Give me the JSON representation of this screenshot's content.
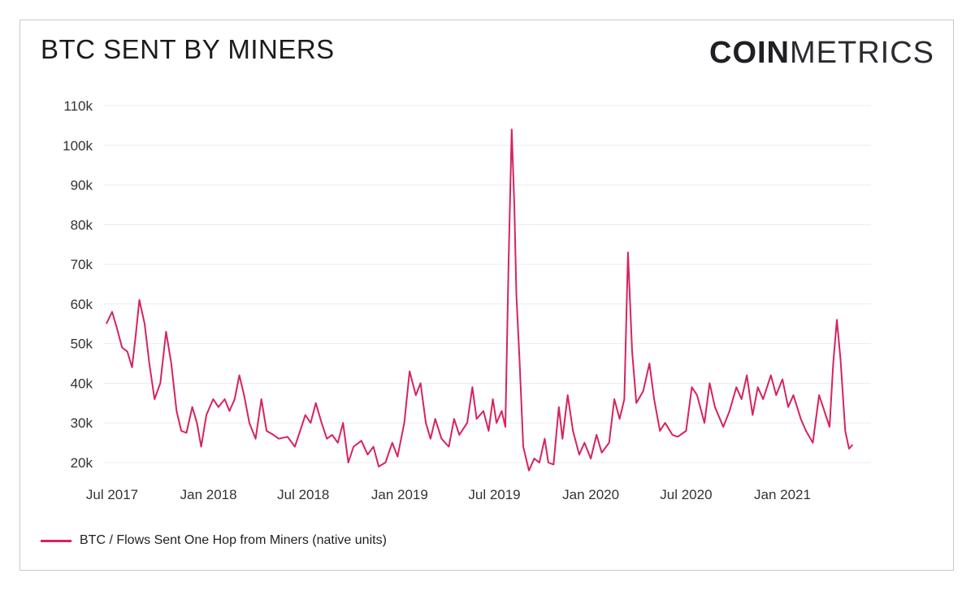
{
  "header": {
    "title": "BTC SENT BY MINERS",
    "logo_bold": "COIN",
    "logo_light": "METRICS"
  },
  "chart_data": {
    "type": "line",
    "title": "BTC SENT BY MINERS",
    "xlabel": "",
    "ylabel": "",
    "ylim": [
      20000,
      110000
    ],
    "y_ticks": [
      "110k",
      "100k",
      "90k",
      "80k",
      "70k",
      "60k",
      "50k",
      "40k",
      "30k",
      "20k"
    ],
    "x_ticks": [
      "Jul 2017",
      "Jan 2018",
      "Jul 2018",
      "Jan 2019",
      "Jul 2019",
      "Jan 2020",
      "Jul 2020",
      "Jan 2021"
    ],
    "grid": true,
    "legend_position": "bottom-left",
    "series": [
      {
        "name": "BTC / Flows Sent One Hop from Miners (native units)",
        "color": "#d6245b",
        "points": [
          [
            "2017-06-20",
            55000
          ],
          [
            "2017-07-01",
            58000
          ],
          [
            "2017-07-10",
            54000
          ],
          [
            "2017-07-20",
            49000
          ],
          [
            "2017-07-30",
            48000
          ],
          [
            "2017-08-08",
            44000
          ],
          [
            "2017-08-15",
            52000
          ],
          [
            "2017-08-22",
            61000
          ],
          [
            "2017-09-01",
            55000
          ],
          [
            "2017-09-10",
            45000
          ],
          [
            "2017-09-20",
            36000
          ],
          [
            "2017-10-01",
            40000
          ],
          [
            "2017-10-12",
            53000
          ],
          [
            "2017-10-22",
            45000
          ],
          [
            "2017-11-01",
            33000
          ],
          [
            "2017-11-10",
            28000
          ],
          [
            "2017-11-20",
            27500
          ],
          [
            "2017-12-01",
            34000
          ],
          [
            "2017-12-10",
            30000
          ],
          [
            "2017-12-18",
            24000
          ],
          [
            "2017-12-28",
            32000
          ],
          [
            "2018-01-10",
            36000
          ],
          [
            "2018-01-20",
            34000
          ],
          [
            "2018-02-01",
            36000
          ],
          [
            "2018-02-10",
            33000
          ],
          [
            "2018-02-20",
            36000
          ],
          [
            "2018-03-01",
            42000
          ],
          [
            "2018-03-10",
            37000
          ],
          [
            "2018-03-20",
            30000
          ],
          [
            "2018-04-01",
            26000
          ],
          [
            "2018-04-12",
            36000
          ],
          [
            "2018-04-22",
            28000
          ],
          [
            "2018-05-05",
            27000
          ],
          [
            "2018-05-15",
            26000
          ],
          [
            "2018-06-01",
            26500
          ],
          [
            "2018-06-15",
            24000
          ],
          [
            "2018-06-25",
            28000
          ],
          [
            "2018-07-05",
            32000
          ],
          [
            "2018-07-15",
            30000
          ],
          [
            "2018-07-25",
            35000
          ],
          [
            "2018-08-05",
            30000
          ],
          [
            "2018-08-15",
            26000
          ],
          [
            "2018-08-25",
            27000
          ],
          [
            "2018-09-05",
            25000
          ],
          [
            "2018-09-15",
            30000
          ],
          [
            "2018-09-25",
            20000
          ],
          [
            "2018-10-05",
            24000
          ],
          [
            "2018-10-20",
            25500
          ],
          [
            "2018-11-01",
            22000
          ],
          [
            "2018-11-12",
            24000
          ],
          [
            "2018-11-22",
            19000
          ],
          [
            "2018-12-05",
            20000
          ],
          [
            "2018-12-18",
            25000
          ],
          [
            "2018-12-28",
            21500
          ],
          [
            "2019-01-10",
            30000
          ],
          [
            "2019-01-20",
            43000
          ],
          [
            "2019-02-01",
            37000
          ],
          [
            "2019-02-10",
            40000
          ],
          [
            "2019-02-20",
            30000
          ],
          [
            "2019-03-01",
            26000
          ],
          [
            "2019-03-10",
            31000
          ],
          [
            "2019-03-22",
            26000
          ],
          [
            "2019-04-05",
            24000
          ],
          [
            "2019-04-15",
            31000
          ],
          [
            "2019-04-25",
            27000
          ],
          [
            "2019-05-10",
            30000
          ],
          [
            "2019-05-20",
            39000
          ],
          [
            "2019-05-28",
            31000
          ],
          [
            "2019-06-10",
            33000
          ],
          [
            "2019-06-20",
            28000
          ],
          [
            "2019-06-28",
            36000
          ],
          [
            "2019-07-05",
            30000
          ],
          [
            "2019-07-15",
            33000
          ],
          [
            "2019-07-22",
            29000
          ],
          [
            "2019-07-28",
            70000
          ],
          [
            "2019-08-03",
            104000
          ],
          [
            "2019-08-08",
            85000
          ],
          [
            "2019-08-12",
            62000
          ],
          [
            "2019-08-18",
            46000
          ],
          [
            "2019-08-25",
            24000
          ],
          [
            "2019-09-05",
            18000
          ],
          [
            "2019-09-15",
            21000
          ],
          [
            "2019-09-25",
            20000
          ],
          [
            "2019-10-05",
            26000
          ],
          [
            "2019-10-12",
            20000
          ],
          [
            "2019-10-22",
            19500
          ],
          [
            "2019-11-01",
            34000
          ],
          [
            "2019-11-08",
            26000
          ],
          [
            "2019-11-18",
            37000
          ],
          [
            "2019-11-28",
            28000
          ],
          [
            "2019-12-10",
            22000
          ],
          [
            "2019-12-20",
            25000
          ],
          [
            "2020-01-01",
            21000
          ],
          [
            "2020-01-12",
            27000
          ],
          [
            "2020-01-22",
            22500
          ],
          [
            "2020-02-05",
            25000
          ],
          [
            "2020-02-15",
            36000
          ],
          [
            "2020-02-25",
            31000
          ],
          [
            "2020-03-05",
            36000
          ],
          [
            "2020-03-12",
            73000
          ],
          [
            "2020-03-20",
            48000
          ],
          [
            "2020-03-28",
            35000
          ],
          [
            "2020-04-10",
            38000
          ],
          [
            "2020-04-22",
            45000
          ],
          [
            "2020-05-01",
            36000
          ],
          [
            "2020-05-12",
            28000
          ],
          [
            "2020-05-22",
            30000
          ],
          [
            "2020-06-05",
            27000
          ],
          [
            "2020-06-15",
            26500
          ],
          [
            "2020-07-01",
            28000
          ],
          [
            "2020-07-12",
            39000
          ],
          [
            "2020-07-22",
            37000
          ],
          [
            "2020-08-05",
            30000
          ],
          [
            "2020-08-15",
            40000
          ],
          [
            "2020-08-25",
            34000
          ],
          [
            "2020-09-10",
            29000
          ],
          [
            "2020-09-22",
            33000
          ],
          [
            "2020-10-05",
            39000
          ],
          [
            "2020-10-15",
            36000
          ],
          [
            "2020-10-25",
            42000
          ],
          [
            "2020-11-05",
            32000
          ],
          [
            "2020-11-15",
            39000
          ],
          [
            "2020-11-25",
            36000
          ],
          [
            "2020-12-10",
            42000
          ],
          [
            "2020-12-20",
            37000
          ],
          [
            "2021-01-01",
            41000
          ],
          [
            "2021-01-12",
            34000
          ],
          [
            "2021-01-22",
            37000
          ],
          [
            "2021-02-05",
            31000
          ],
          [
            "2021-02-15",
            28000
          ],
          [
            "2021-02-28",
            25000
          ],
          [
            "2021-03-12",
            37000
          ],
          [
            "2021-03-22",
            33000
          ],
          [
            "2021-04-01",
            29000
          ],
          [
            "2021-04-08",
            45000
          ],
          [
            "2021-04-15",
            56000
          ],
          [
            "2021-04-22",
            46000
          ],
          [
            "2021-05-01",
            28000
          ],
          [
            "2021-05-08",
            23500
          ],
          [
            "2021-05-15",
            24500
          ]
        ]
      }
    ]
  },
  "legend": {
    "label": "BTC / Flows Sent One Hop from Miners (native units)"
  }
}
